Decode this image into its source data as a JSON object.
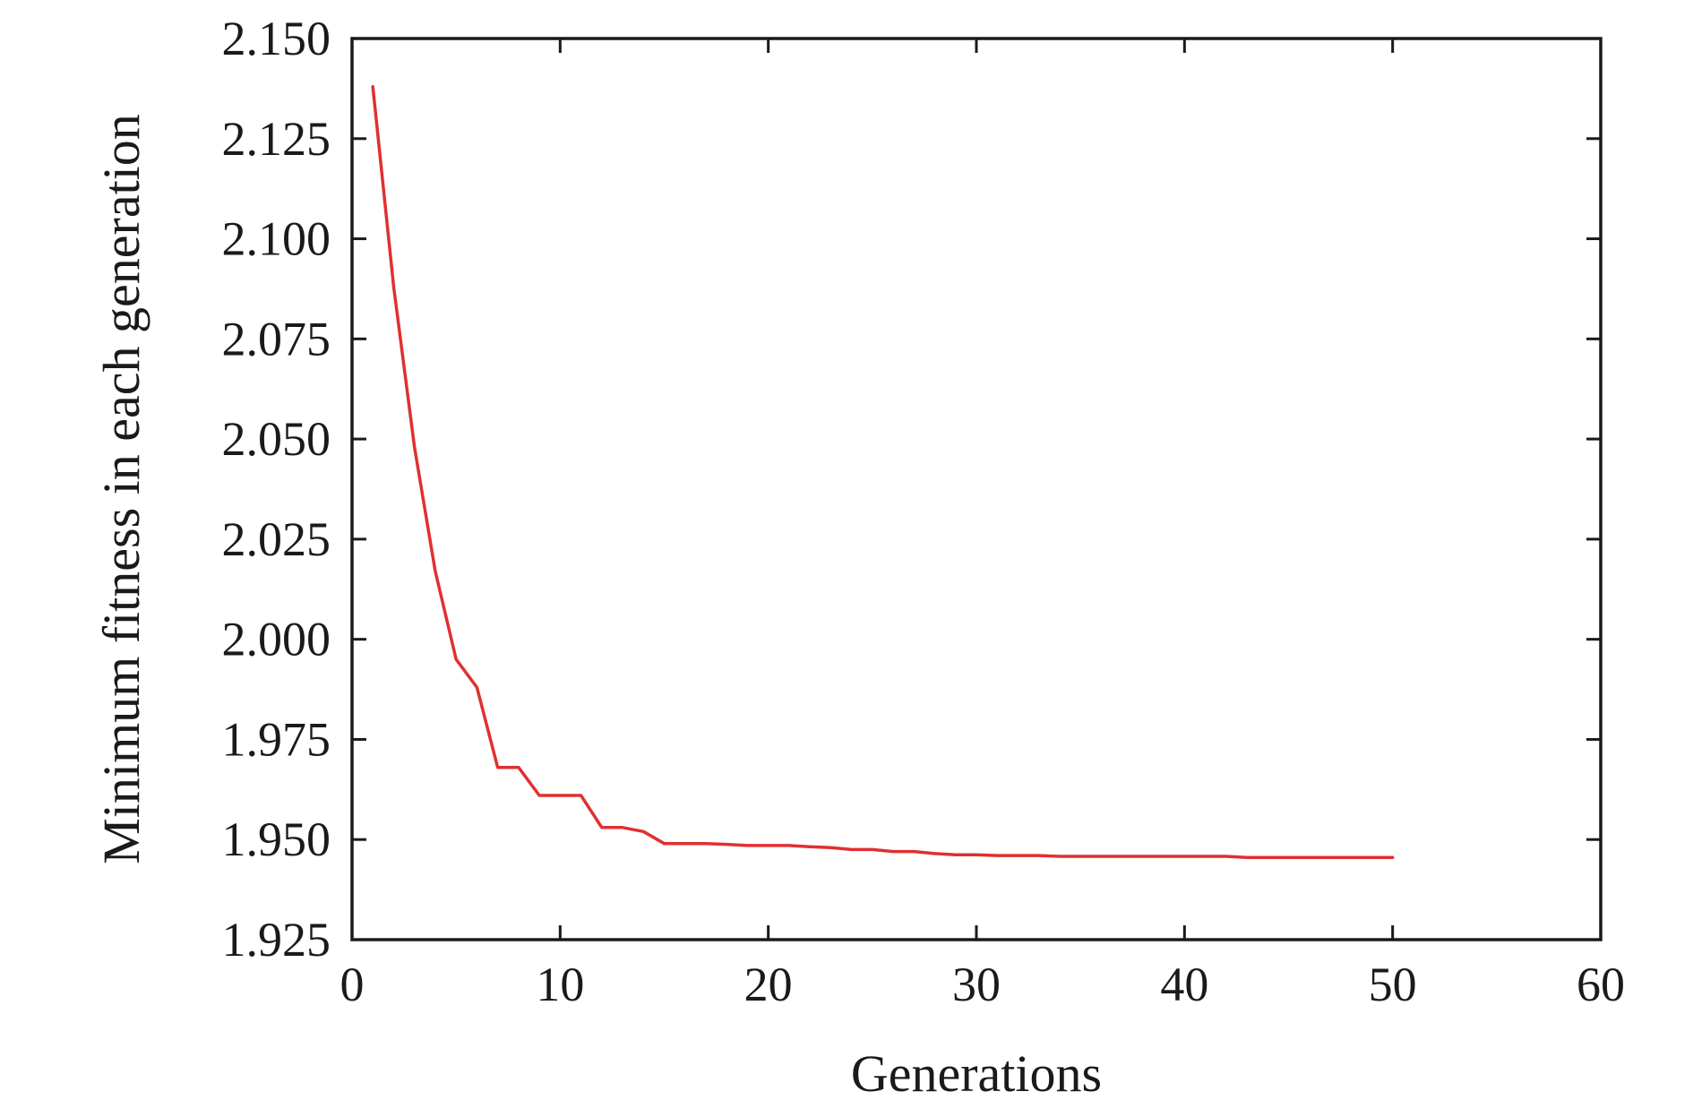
{
  "chart_data": {
    "type": "line",
    "title": "",
    "xlabel": "Generations",
    "ylabel": "Minimum fitness in each generation",
    "xlim": [
      0,
      60
    ],
    "ylim": [
      1.925,
      2.15
    ],
    "xticks": [
      0,
      10,
      20,
      30,
      40,
      50,
      60
    ],
    "xtick_labels": [
      "0",
      "10",
      "20",
      "30",
      "40",
      "50",
      "60"
    ],
    "yticks": [
      1.925,
      1.95,
      1.975,
      2.0,
      2.025,
      2.05,
      2.075,
      2.1,
      2.125,
      2.15
    ],
    "ytick_labels": [
      "1.925",
      "1.950",
      "1.975",
      "2.000",
      "2.025",
      "2.050",
      "2.075",
      "2.100",
      "2.125",
      "2.150"
    ],
    "grid": false,
    "legend": "none",
    "series": [
      {
        "color": "#e03030",
        "x": [
          1,
          2,
          3,
          4,
          5,
          6,
          7,
          8,
          9,
          10,
          11,
          12,
          13,
          14,
          15,
          16,
          17,
          18,
          19,
          20,
          21,
          22,
          23,
          24,
          25,
          26,
          27,
          28,
          29,
          30,
          31,
          32,
          33,
          34,
          35,
          36,
          37,
          38,
          39,
          40,
          41,
          42,
          43,
          44,
          45,
          46,
          47,
          48,
          49,
          50
        ],
        "y": [
          2.138,
          2.088,
          2.048,
          2.017,
          1.995,
          1.988,
          1.968,
          1.968,
          1.961,
          1.961,
          1.961,
          1.953,
          1.953,
          1.952,
          1.949,
          1.949,
          1.949,
          1.9488,
          1.9485,
          1.9485,
          1.9485,
          1.9482,
          1.948,
          1.9475,
          1.9475,
          1.947,
          1.947,
          1.9465,
          1.9462,
          1.9462,
          1.946,
          1.946,
          1.946,
          1.9458,
          1.9458,
          1.9458,
          1.9458,
          1.9458,
          1.9458,
          1.9458,
          1.9458,
          1.9458,
          1.9455,
          1.9455,
          1.9455,
          1.9455,
          1.9455,
          1.9455,
          1.9455,
          1.9455
        ]
      }
    ]
  }
}
